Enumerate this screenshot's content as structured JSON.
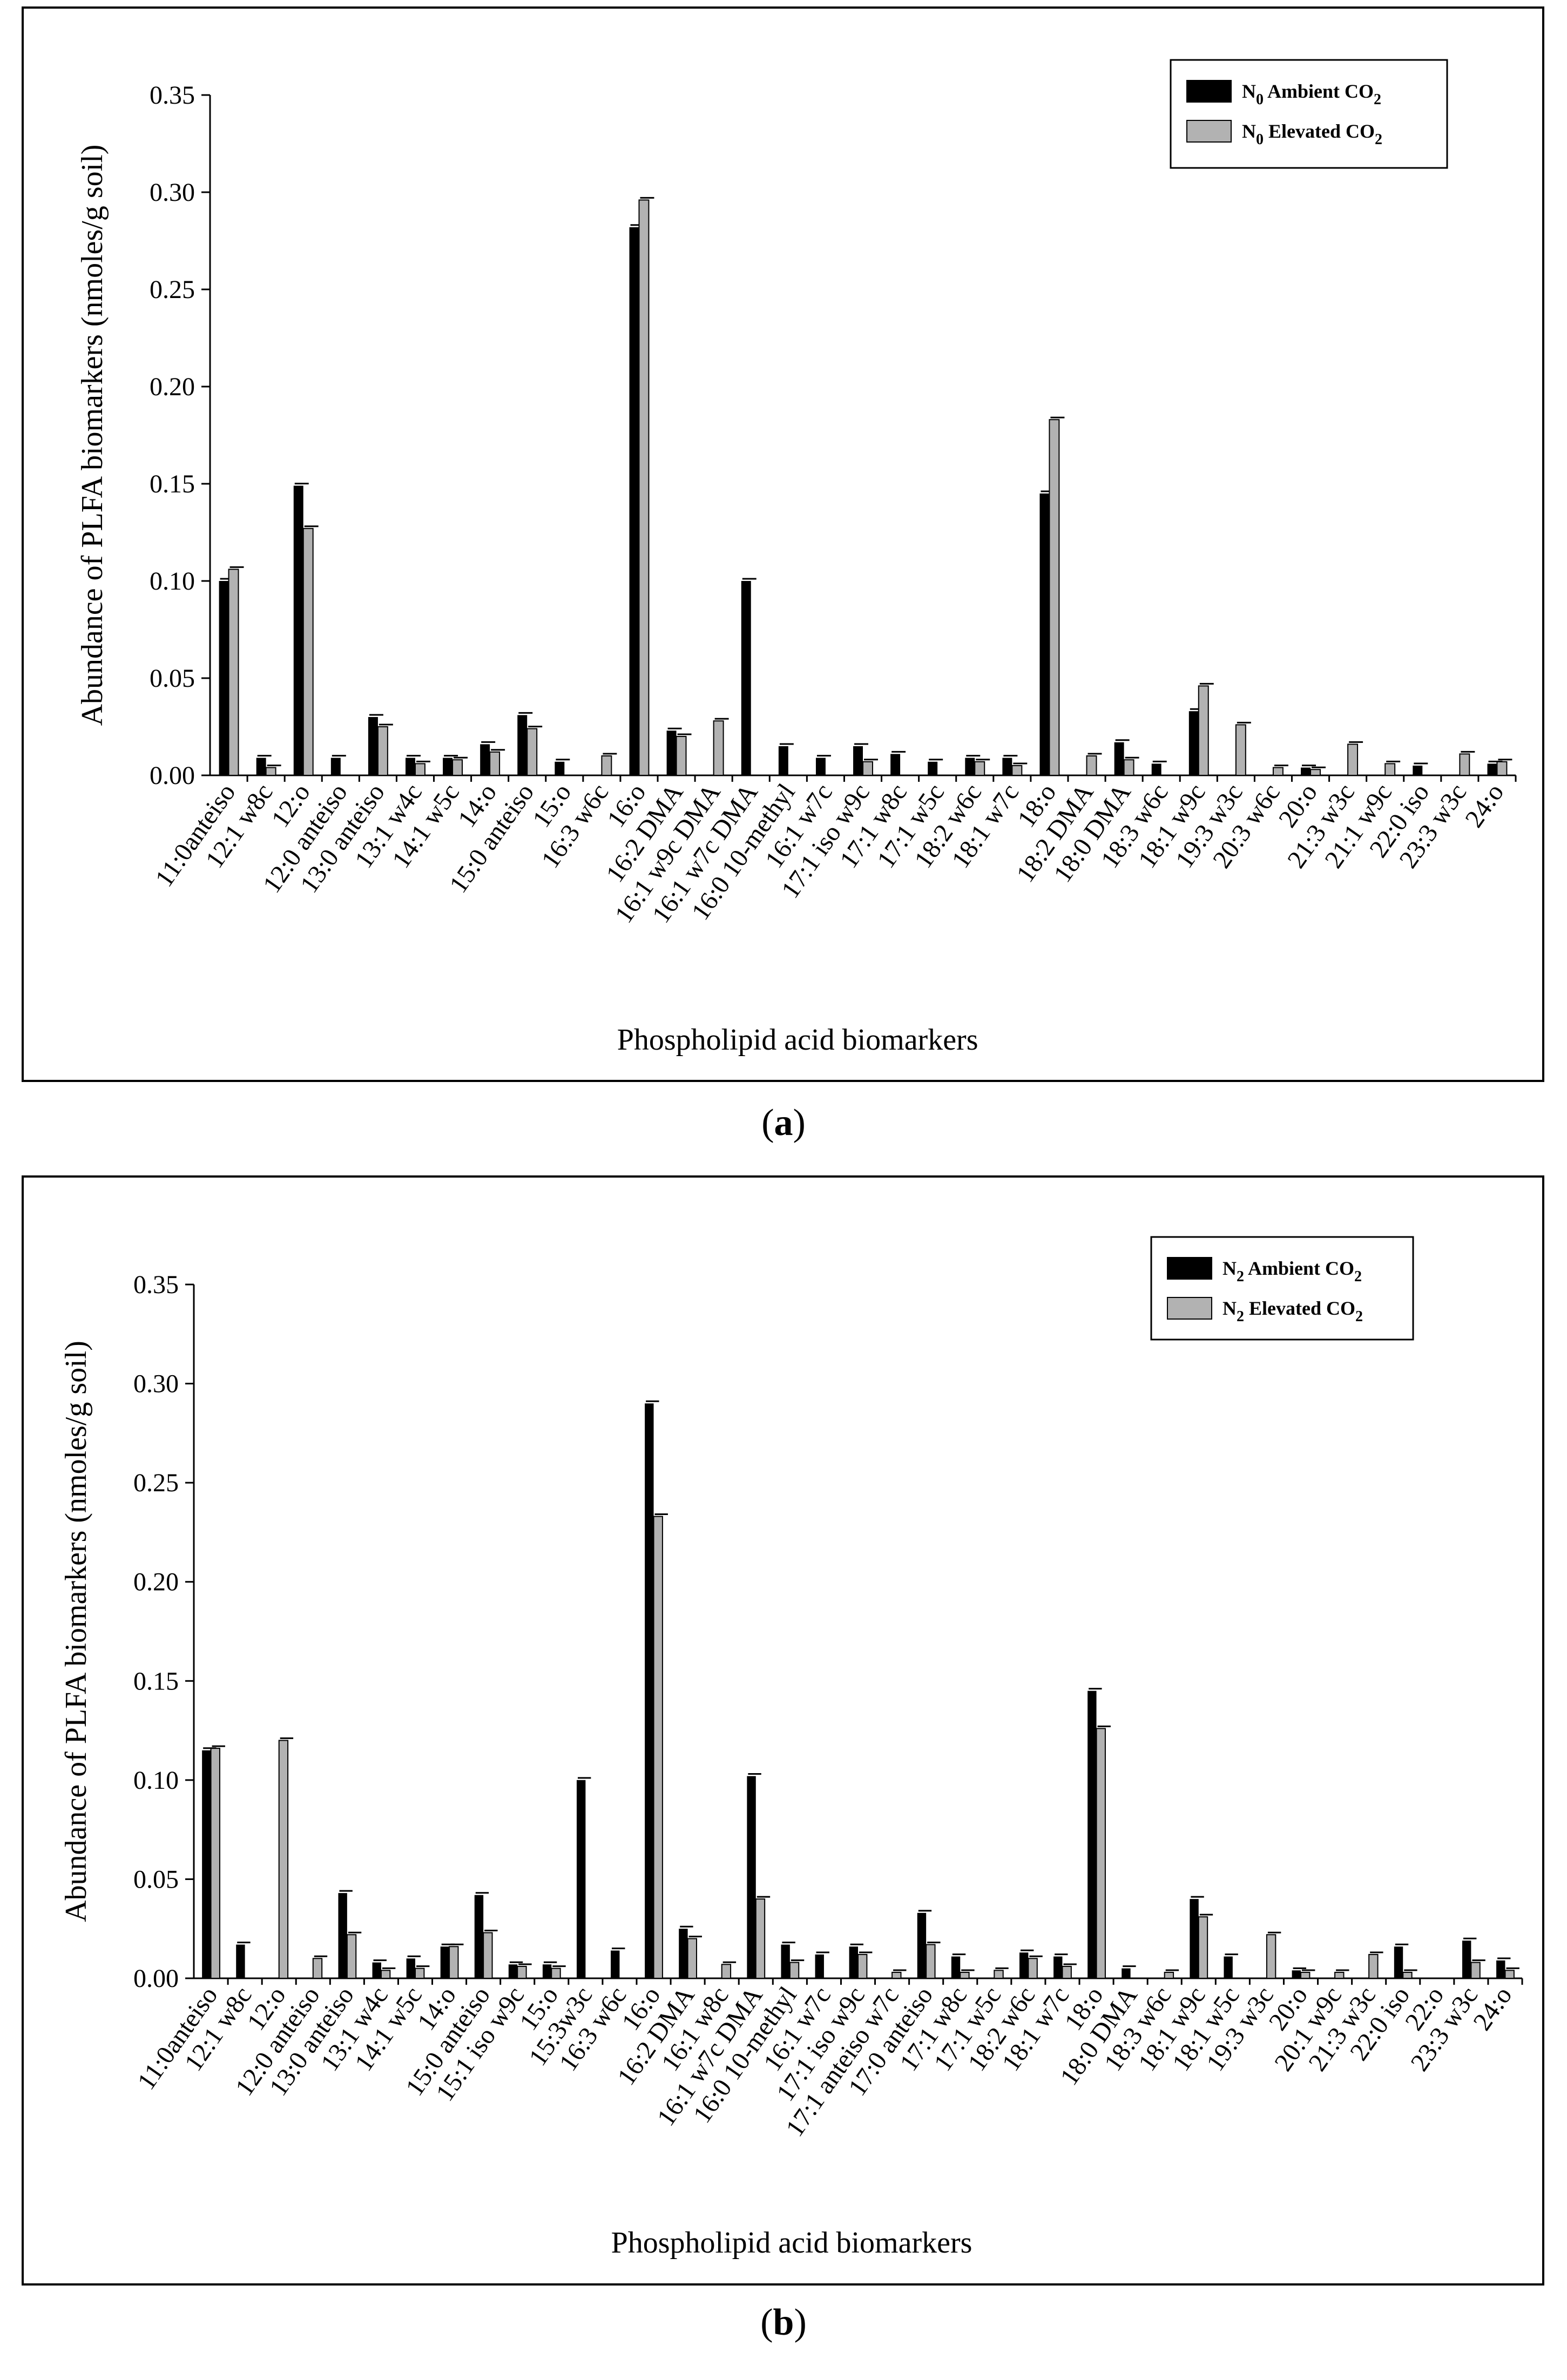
{
  "panels": [
    {
      "label_open": "(",
      "label_letter": "a",
      "label_close": ")"
    },
    {
      "label_open": "(",
      "label_letter": "b",
      "label_close": ")"
    }
  ],
  "colors": {
    "ambient": "#000000",
    "elevated": "#b2b2b2",
    "axis": "#000000"
  },
  "chart_data": [
    {
      "type": "bar",
      "title": "",
      "xlabel": "Phospholipid acid biomarkers",
      "ylabel": "Abundance of PLFA biomarkers (nmoles/g soil)",
      "ylim": [
        0,
        0.35
      ],
      "yticks": [
        "0.00",
        "0.05",
        "0.10",
        "0.15",
        "0.20",
        "0.25",
        "0.30",
        "0.35"
      ],
      "legend_position": "top-right",
      "categories": [
        "11:0anteiso",
        "12:1 w8c",
        "12:o",
        "12:0 anteiso",
        "13:0 anteiso",
        "13:1 w4c",
        "14:1 w5c",
        "14:o",
        "15:0 anteiso",
        "15:o",
        "16:3 w6c",
        "16:o",
        "16:2 DMA",
        "16:1 w9c DMA",
        "16:1 w7c DMA",
        "16:0 10-methyl",
        "16:1 w7c",
        "17:1 iso w9c",
        "17:1 w8c",
        "17:1 w5c",
        "18:2 w6c",
        "18:1 w7c",
        "18:o",
        "18:2 DMA",
        "18:0 DMA",
        "18:3 w6c",
        "18:1 w9c",
        "19:3 w3c",
        "20:3 w6c",
        "20:o",
        "21:3 w3c",
        "21:1 w9c",
        "22:0 iso",
        "23:3 w3c",
        "24:o"
      ],
      "series": [
        {
          "name_main": "N",
          "name_sub": "0",
          "name_mid": " Ambient CO",
          "name_sub2": "2",
          "values": [
            0.1,
            0.009,
            0.149,
            0.009,
            0.03,
            0.009,
            0.009,
            0.016,
            0.031,
            0.007,
            0,
            0.282,
            0.023,
            0,
            0.1,
            0.015,
            0.009,
            0.015,
            0.011,
            0.007,
            0.009,
            0.009,
            0.145,
            0,
            0.017,
            0.006,
            0.033,
            0,
            0,
            0.004,
            0,
            0,
            0.005,
            0,
            0.006
          ]
        },
        {
          "name_main": "N",
          "name_sub": "0",
          "name_mid": " Elevated CO",
          "name_sub2": "2",
          "values": [
            0.106,
            0.004,
            0.127,
            0,
            0.025,
            0.006,
            0.008,
            0.012,
            0.024,
            0,
            0.01,
            0.296,
            0.02,
            0.028,
            0,
            0,
            0,
            0.007,
            0,
            0,
            0.007,
            0.005,
            0.183,
            0.01,
            0.008,
            0,
            0.046,
            0.026,
            0.004,
            0.003,
            0.016,
            0.006,
            0,
            0.011,
            0.007
          ]
        }
      ]
    },
    {
      "type": "bar",
      "title": "",
      "xlabel": "Phospholipid acid biomarkers",
      "ylabel": "Abundance of PLFA biomarkers (nmoles/g soil)",
      "ylim": [
        0,
        0.35
      ],
      "yticks": [
        "0.00",
        "0.05",
        "0.10",
        "0.15",
        "0.20",
        "0.25",
        "0.30",
        "0.35"
      ],
      "legend_position": "top-right",
      "categories": [
        "11:0anteiso",
        "12:1 w8c",
        "12:o",
        "12:0 anteiso",
        "13:0 anteiso",
        "13:1 w4c",
        "14:1 w5c",
        "14:o",
        "15:0 anteiso",
        "15:1 iso w9c",
        "15:o",
        "15:3w3c",
        "16:3 w6c",
        "16:o",
        "16:2 DMA",
        "16:1 w8c",
        "16:1 w7c DMA",
        "16:0 10-methyl",
        "16:1 w7c",
        "17:1 iso w9c",
        "17:1 anteiso w7c",
        "17:0 anteiso",
        "17:1 w8c",
        "17:1 w5c",
        "18:2 w6c",
        "18:1 w7c",
        "18:o",
        "18:0 DMA",
        "18:3 w6c",
        "18:1 w9c",
        "18:1 w5c",
        "19:3 w3c",
        "20:o",
        "20:1 w9c",
        "21:3 w3c",
        "22:0 iso",
        "22:o",
        "23:3 w3c",
        "24:o"
      ],
      "series": [
        {
          "name_main": "N",
          "name_sub": "2",
          "name_mid": " Ambient CO",
          "name_sub2": "2",
          "values": [
            0.115,
            0.017,
            0,
            0,
            0.043,
            0.008,
            0.01,
            0.016,
            0.042,
            0.007,
            0.007,
            0.1,
            0.014,
            0.29,
            0.025,
            0,
            0.102,
            0.017,
            0.012,
            0.016,
            0,
            0.033,
            0.011,
            0,
            0.013,
            0.011,
            0.145,
            0.005,
            0,
            0.04,
            0.011,
            0,
            0.004,
            0,
            0,
            0.016,
            0,
            0.019,
            0.009
          ]
        },
        {
          "name_main": "N",
          "name_sub": "2",
          "name_mid": " Elevated CO",
          "name_sub2": "2",
          "values": [
            0.116,
            0,
            0.12,
            0.01,
            0.022,
            0.004,
            0.005,
            0.016,
            0.023,
            0.006,
            0.005,
            0,
            0,
            0.233,
            0.02,
            0.007,
            0.04,
            0.008,
            0,
            0.012,
            0.003,
            0.017,
            0.003,
            0.004,
            0.01,
            0.006,
            0.126,
            0,
            0.003,
            0.031,
            0,
            0.022,
            0.003,
            0.003,
            0.012,
            0.003,
            0,
            0.008,
            0.004
          ]
        }
      ]
    }
  ]
}
